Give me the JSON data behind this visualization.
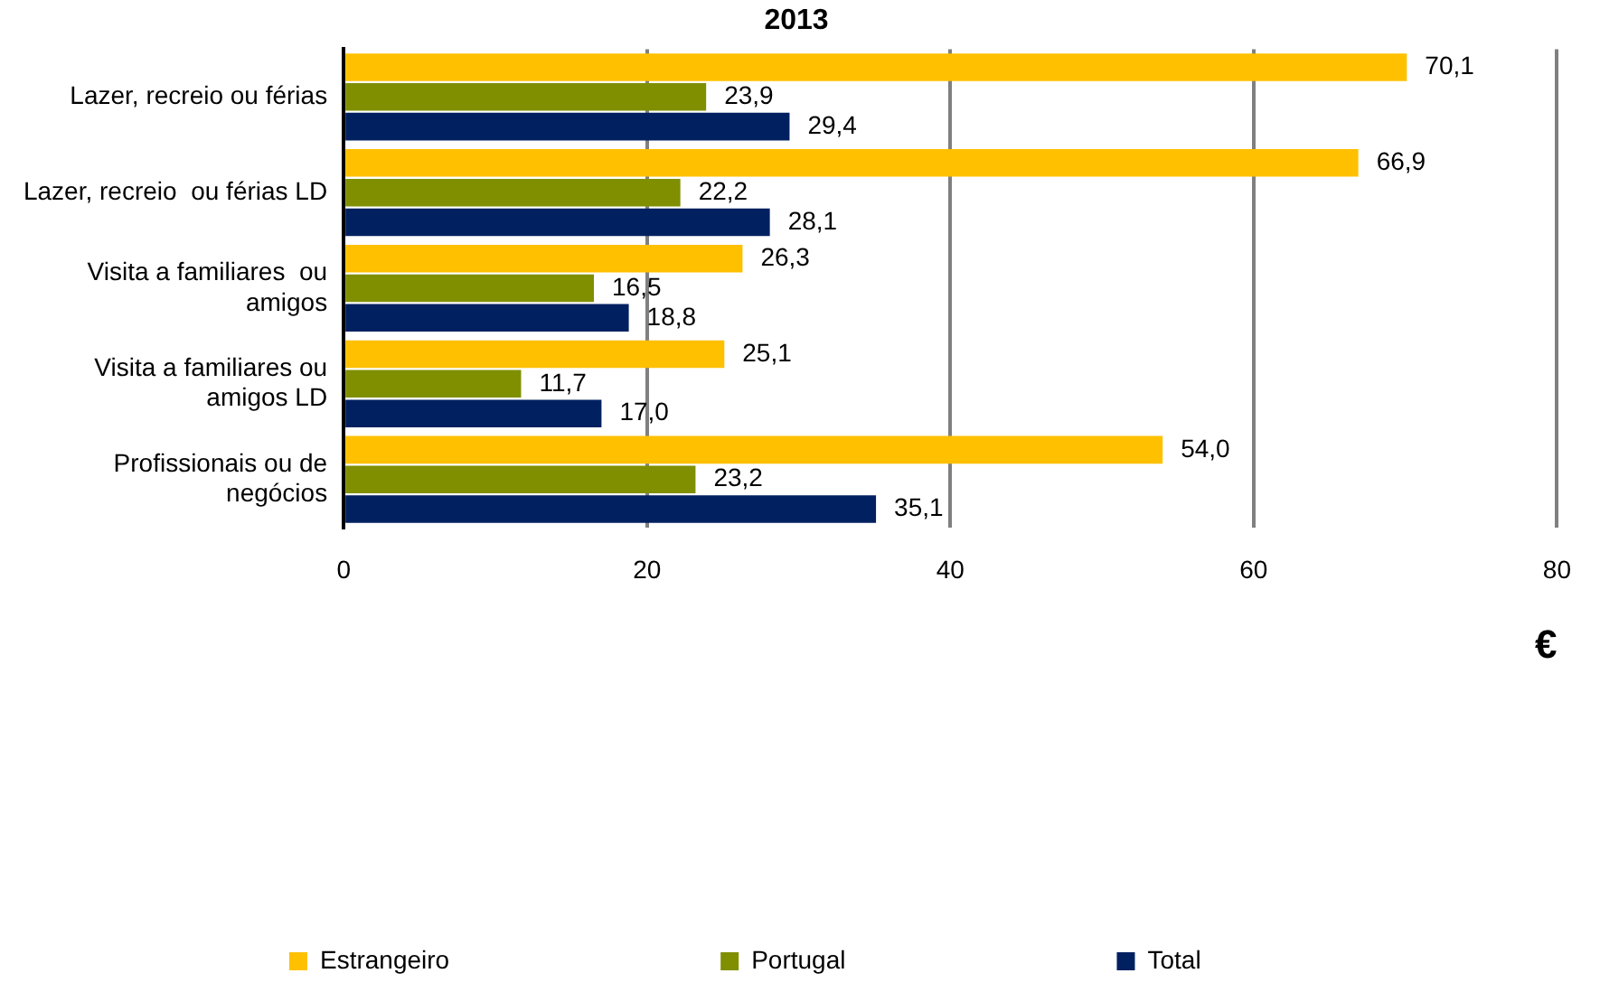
{
  "chart_data": {
    "type": "bar",
    "orientation": "horizontal",
    "title": "2013",
    "xlabel": "€",
    "categories": [
      "Lazer, recreio ou férias",
      "Lazer, recreio  ou férias LD",
      "Visita a familiares  ou\namigos",
      "Visita a familiares ou\namigos LD",
      "Profissionais ou de\nnegócios"
    ],
    "series": [
      {
        "name": "Estrangeiro",
        "color": "#ffc000",
        "values": [
          70.1,
          66.9,
          26.3,
          25.1,
          54.0
        ],
        "value_labels": [
          "70,1",
          "66,9",
          "26,3",
          "25,1",
          "54,0"
        ]
      },
      {
        "name": "Portugal",
        "color": "#7f8f00",
        "values": [
          23.9,
          22.2,
          16.5,
          11.7,
          23.2
        ],
        "value_labels": [
          "23,9",
          "22,2",
          "16,5",
          "11,7",
          "23,2"
        ]
      },
      {
        "name": "Total",
        "color": "#002060",
        "values": [
          29.4,
          28.1,
          18.8,
          17.0,
          35.1
        ],
        "value_labels": [
          "29,4",
          "28,1",
          "18,8",
          "17,0",
          "35,1"
        ]
      }
    ],
    "xlim": [
      0,
      80
    ],
    "xticks": [
      0,
      20,
      40,
      60,
      80
    ],
    "grid": "x",
    "legend": "bottom"
  }
}
